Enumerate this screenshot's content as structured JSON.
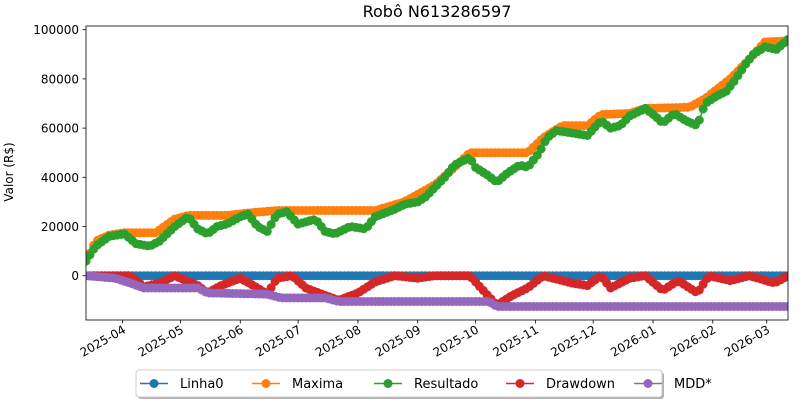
{
  "chart_data": {
    "type": "line",
    "title": "Robô N613286597",
    "xlabel": "",
    "ylabel": "Valor (R$)",
    "x_range": [
      "2025-03-13",
      "2026-03-12"
    ],
    "ylim": [
      -18000,
      101500
    ],
    "x_ticks": [
      "2025-04",
      "2025-05",
      "2025-06",
      "2025-07",
      "2025-08",
      "2025-09",
      "2025-10",
      "2025-11",
      "2025-12",
      "2026-01",
      "2026-02",
      "2026-03"
    ],
    "y_ticks": [
      "0",
      "20000",
      "40000",
      "60000",
      "80000",
      "100000"
    ],
    "y_tick_values": [
      0,
      20000,
      40000,
      60000,
      80000,
      100000
    ],
    "grid": false,
    "legend_position": "bottom-center",
    "series": [
      {
        "name": "Linha0",
        "color": "#1f77b4",
        "points": [
          [
            "2025-03-13",
            0
          ],
          [
            "2026-03-12",
            0
          ]
        ]
      },
      {
        "name": "Maxima",
        "color": "#ff7f0e",
        "points": [
          [
            "2025-03-13",
            6000
          ],
          [
            "2025-03-18",
            14000
          ],
          [
            "2025-03-25",
            16500
          ],
          [
            "2025-04-02",
            17500
          ],
          [
            "2025-04-18",
            17500
          ],
          [
            "2025-04-28",
            23000
          ],
          [
            "2025-05-05",
            24500
          ],
          [
            "2025-05-25",
            24500
          ],
          [
            "2025-06-05",
            25500
          ],
          [
            "2025-06-20",
            26500
          ],
          [
            "2025-08-10",
            26500
          ],
          [
            "2025-08-25",
            30000
          ],
          [
            "2025-09-10",
            37000
          ],
          [
            "2025-09-20",
            44000
          ],
          [
            "2025-09-28",
            50000
          ],
          [
            "2025-10-28",
            50000
          ],
          [
            "2025-11-05",
            56000
          ],
          [
            "2025-11-15",
            61000
          ],
          [
            "2025-11-28",
            61000
          ],
          [
            "2025-12-05",
            65500
          ],
          [
            "2025-12-20",
            66000
          ],
          [
            "2025-12-28",
            68000
          ],
          [
            "2026-01-20",
            68500
          ],
          [
            "2026-01-28",
            72000
          ],
          [
            "2026-02-10",
            80000
          ],
          [
            "2026-02-20",
            88000
          ],
          [
            "2026-02-28",
            95000
          ],
          [
            "2026-03-12",
            95500
          ]
        ]
      },
      {
        "name": "Resultado",
        "color": "#2ca02c",
        "points": [
          [
            "2025-03-13",
            6000
          ],
          [
            "2025-03-18",
            12000
          ],
          [
            "2025-03-25",
            16000
          ],
          [
            "2025-04-02",
            17000
          ],
          [
            "2025-04-08",
            13000
          ],
          [
            "2025-04-15",
            12000
          ],
          [
            "2025-04-20",
            14000
          ],
          [
            "2025-04-28",
            20000
          ],
          [
            "2025-05-05",
            24000
          ],
          [
            "2025-05-10",
            19000
          ],
          [
            "2025-05-15",
            17000
          ],
          [
            "2025-05-20",
            20000
          ],
          [
            "2025-05-25",
            21000
          ],
          [
            "2025-06-01",
            24000
          ],
          [
            "2025-06-05",
            25000
          ],
          [
            "2025-06-10",
            20000
          ],
          [
            "2025-06-15",
            18000
          ],
          [
            "2025-06-20",
            25000
          ],
          [
            "2025-06-25",
            26000
          ],
          [
            "2025-07-01",
            21000
          ],
          [
            "2025-07-10",
            23000
          ],
          [
            "2025-07-15",
            18000
          ],
          [
            "2025-07-20",
            17000
          ],
          [
            "2025-07-28",
            20000
          ],
          [
            "2025-08-05",
            19000
          ],
          [
            "2025-08-10",
            24000
          ],
          [
            "2025-08-20",
            27000
          ],
          [
            "2025-08-25",
            29000
          ],
          [
            "2025-09-01",
            30000
          ],
          [
            "2025-09-05",
            32000
          ],
          [
            "2025-09-10",
            36000
          ],
          [
            "2025-09-15",
            40000
          ],
          [
            "2025-09-20",
            45000
          ],
          [
            "2025-09-28",
            48000
          ],
          [
            "2025-10-01",
            44000
          ],
          [
            "2025-10-07",
            41000
          ],
          [
            "2025-10-12",
            38000
          ],
          [
            "2025-10-18",
            42000
          ],
          [
            "2025-10-24",
            45000
          ],
          [
            "2025-10-28",
            44000
          ],
          [
            "2025-11-03",
            50000
          ],
          [
            "2025-11-07",
            56000
          ],
          [
            "2025-11-12",
            59000
          ],
          [
            "2025-11-20",
            58000
          ],
          [
            "2025-11-28",
            57000
          ],
          [
            "2025-12-05",
            63000
          ],
          [
            "2025-12-10",
            60000
          ],
          [
            "2025-12-15",
            61000
          ],
          [
            "2025-12-20",
            65000
          ],
          [
            "2025-12-28",
            68000
          ],
          [
            "2026-01-02",
            65000
          ],
          [
            "2026-01-06",
            62000
          ],
          [
            "2026-01-12",
            66000
          ],
          [
            "2026-01-18",
            63000
          ],
          [
            "2026-01-24",
            61000
          ],
          [
            "2026-01-28",
            70000
          ],
          [
            "2026-02-03",
            73000
          ],
          [
            "2026-02-08",
            75000
          ],
          [
            "2026-02-12",
            79000
          ],
          [
            "2026-02-18",
            86000
          ],
          [
            "2026-02-22",
            90000
          ],
          [
            "2026-02-28",
            93000
          ],
          [
            "2026-03-06",
            92000
          ],
          [
            "2026-03-12",
            96000
          ]
        ]
      },
      {
        "name": "Drawdown",
        "color": "#d62728",
        "points": [
          [
            "2025-03-13",
            0
          ],
          [
            "2025-04-05",
            0
          ],
          [
            "2025-04-12",
            -4500
          ],
          [
            "2025-04-20",
            -3000
          ],
          [
            "2025-04-28",
            0
          ],
          [
            "2025-05-10",
            -4000
          ],
          [
            "2025-05-15",
            -7000
          ],
          [
            "2025-05-22",
            -4000
          ],
          [
            "2025-06-01",
            -1000
          ],
          [
            "2025-06-10",
            -5000
          ],
          [
            "2025-06-15",
            -7500
          ],
          [
            "2025-06-20",
            -1000
          ],
          [
            "2025-06-28",
            0
          ],
          [
            "2025-07-05",
            -5000
          ],
          [
            "2025-07-15",
            -8000
          ],
          [
            "2025-07-22",
            -10000
          ],
          [
            "2025-08-01",
            -7000
          ],
          [
            "2025-08-10",
            -2500
          ],
          [
            "2025-08-20",
            0
          ],
          [
            "2025-09-01",
            -1000
          ],
          [
            "2025-09-10",
            0
          ],
          [
            "2025-09-28",
            0
          ],
          [
            "2025-10-05",
            -6000
          ],
          [
            "2025-10-12",
            -12000
          ],
          [
            "2025-10-20",
            -8000
          ],
          [
            "2025-10-28",
            -5000
          ],
          [
            "2025-11-05",
            0
          ],
          [
            "2025-11-20",
            -3000
          ],
          [
            "2025-11-28",
            -4000
          ],
          [
            "2025-12-05",
            0
          ],
          [
            "2025-12-10",
            -5000
          ],
          [
            "2025-12-20",
            -1000
          ],
          [
            "2025-12-28",
            0
          ],
          [
            "2026-01-06",
            -6000
          ],
          [
            "2026-01-14",
            -2000
          ],
          [
            "2026-01-24",
            -7000
          ],
          [
            "2026-01-30",
            0
          ],
          [
            "2026-02-10",
            -2000
          ],
          [
            "2026-02-20",
            0
          ],
          [
            "2026-03-05",
            -3000
          ],
          [
            "2026-03-12",
            0
          ]
        ]
      },
      {
        "name": "MDD*",
        "color": "#9467bd",
        "points": [
          [
            "2025-03-13",
            0
          ],
          [
            "2025-03-28",
            -1000
          ],
          [
            "2025-04-05",
            -3000
          ],
          [
            "2025-04-12",
            -5000
          ],
          [
            "2025-05-10",
            -5000
          ],
          [
            "2025-05-15",
            -7000
          ],
          [
            "2025-06-15",
            -7500
          ],
          [
            "2025-06-22",
            -9000
          ],
          [
            "2025-07-15",
            -9000
          ],
          [
            "2025-07-22",
            -10500
          ],
          [
            "2025-10-08",
            -10500
          ],
          [
            "2025-10-12",
            -12500
          ],
          [
            "2026-03-12",
            -12500
          ]
        ]
      }
    ]
  }
}
